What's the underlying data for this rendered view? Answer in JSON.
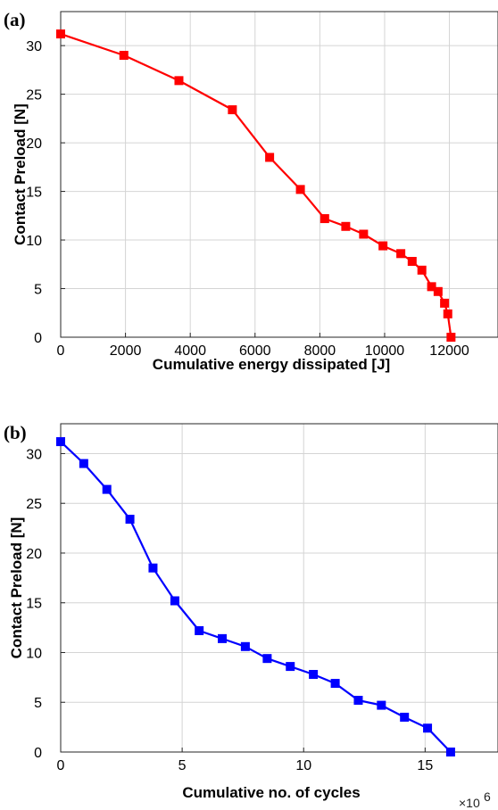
{
  "chart_data": [
    {
      "panel": "(a)",
      "type": "line",
      "xlabel": "Cumulative energy dissipated [J]",
      "ylabel": "Contact Preload [N]",
      "xlim": [
        0,
        13500
      ],
      "ylim": [
        0,
        33.5
      ],
      "xticks": [
        0,
        2000,
        4000,
        6000,
        8000,
        10000,
        12000
      ],
      "yticks": [
        0,
        5,
        10,
        15,
        20,
        25,
        30
      ],
      "xtick_labels": [
        "0",
        "2000",
        "4000",
        "6000",
        "8000",
        "10000",
        "12000"
      ],
      "ytick_labels": [
        "0",
        "5",
        "10",
        "15",
        "20",
        "25",
        "30"
      ],
      "grid": true,
      "marker": "square",
      "color": "#ff0000",
      "series": [
        {
          "x": [
            0,
            1950,
            3650,
            5300,
            6450,
            7400,
            8150,
            8800,
            9350,
            9950,
            10500,
            10850,
            11150,
            11450,
            11650,
            11850,
            11950,
            12050
          ],
          "y": [
            31.2,
            29.0,
            26.4,
            23.4,
            18.5,
            15.2,
            12.2,
            11.4,
            10.6,
            9.4,
            8.6,
            7.8,
            6.9,
            5.2,
            4.7,
            3.5,
            2.4,
            0
          ]
        }
      ]
    },
    {
      "panel": "(b)",
      "type": "line",
      "xlabel": "Cumulative no. of cycles",
      "ylabel": "Contact Preload [N]",
      "x_exponent_label": "×10",
      "x_exponent_power": "6",
      "xlim": [
        0,
        18
      ],
      "ylim": [
        0,
        33
      ],
      "xticks": [
        0,
        5,
        10,
        15
      ],
      "yticks": [
        0,
        5,
        10,
        15,
        20,
        25,
        30
      ],
      "xtick_labels": [
        "0",
        "5",
        "10",
        "15"
      ],
      "ytick_labels": [
        "0",
        "5",
        "10",
        "15",
        "20",
        "25",
        "30"
      ],
      "grid": true,
      "marker": "square",
      "color": "#0000ff",
      "series": [
        {
          "x": [
            0,
            0.95,
            1.9,
            2.85,
            3.8,
            4.7,
            5.7,
            6.65,
            7.6,
            8.5,
            9.45,
            10.4,
            11.3,
            12.25,
            13.2,
            14.15,
            15.1,
            16.05
          ],
          "y": [
            31.2,
            29.0,
            26.4,
            23.4,
            18.5,
            15.2,
            12.2,
            11.4,
            10.6,
            9.4,
            8.6,
            7.8,
            6.9,
            5.2,
            4.7,
            3.5,
            2.4,
            0
          ]
        }
      ]
    }
  ]
}
